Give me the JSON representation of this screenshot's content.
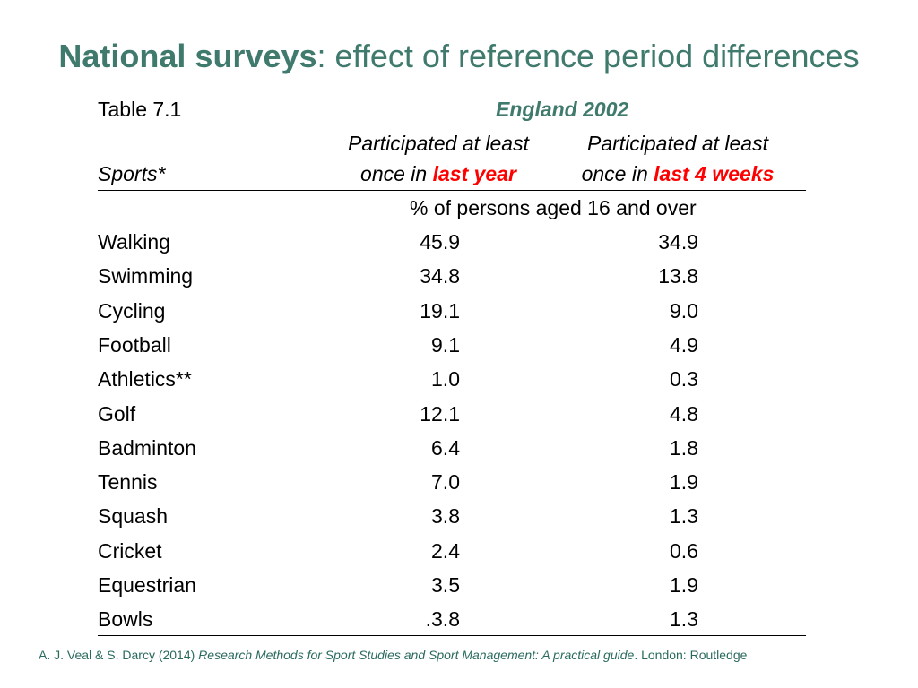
{
  "title": {
    "bold": "National surveys",
    "rest": ": effect of reference period differences"
  },
  "table": {
    "label": "Table 7.1",
    "region": "England 2002",
    "sports_header": "Sports*",
    "col1": {
      "line1": "Participated at least",
      "line2_prefix": "once in ",
      "line2_highlight": "last year"
    },
    "col2": {
      "line1": "Participated at least",
      "line2_prefix": "once in ",
      "line2_highlight": "last 4 weeks"
    },
    "unit": "% of persons aged 16 and over",
    "rows": [
      {
        "sport": "Walking",
        "last_year": "45.9",
        "last_4_weeks": "34.9"
      },
      {
        "sport": "Swimming",
        "last_year": "34.8",
        "last_4_weeks": "13.8"
      },
      {
        "sport": "Cycling",
        "last_year": "19.1",
        "last_4_weeks": "9.0"
      },
      {
        "sport": "Football",
        "last_year": "9.1",
        "last_4_weeks": "4.9"
      },
      {
        "sport": "Athletics**",
        "last_year": "1.0",
        "last_4_weeks": "0.3"
      },
      {
        "sport": "Golf",
        "last_year": "12.1",
        "last_4_weeks": "4.8"
      },
      {
        "sport": "Badminton",
        "last_year": "6.4",
        "last_4_weeks": "1.8"
      },
      {
        "sport": "Tennis",
        "last_year": "7.0",
        "last_4_weeks": "1.9"
      },
      {
        "sport": "Squash",
        "last_year": "3.8",
        "last_4_weeks": "1.3"
      },
      {
        "sport": "Cricket",
        "last_year": "2.4",
        "last_4_weeks": "0.6"
      },
      {
        "sport": "Equestrian",
        "last_year": "3.5",
        "last_4_weeks": "1.9"
      },
      {
        "sport": "Bowls",
        "last_year": ".3.8",
        "last_4_weeks": "1.3"
      }
    ]
  },
  "citation": {
    "authors": "A. J. Veal & S. Darcy (2014) ",
    "work": "Research Methods for Sport Studies and Sport Management: A practical guide",
    "publisher": ". London: Routledge"
  },
  "colors": {
    "accent": "#3f7a6d",
    "highlight": "#ff0000"
  }
}
